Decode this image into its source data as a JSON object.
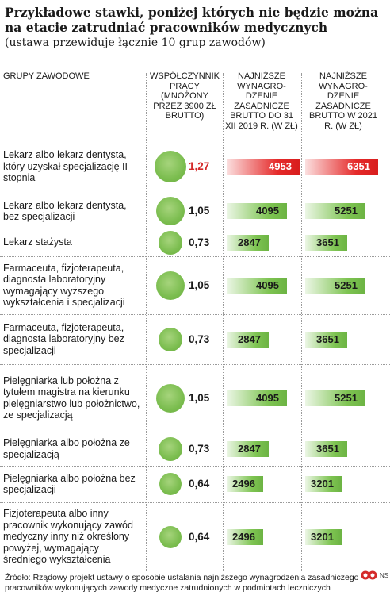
{
  "title": "Przykładowe stawki, poniżej których nie będzie można na etacie zatrudniać pracowników medycznych",
  "subtitle": "(ustawa przewiduje łącznie 10 grup zawodów)",
  "headers": {
    "groups": "GRUPY ZAWODOWE",
    "coef": "WSPÓŁCZYNNIK PRACY (MNOŻONY PRZEZ 3900 ZŁ BRUTTO)",
    "min2019": "NAJNIŻSZE WYNAGRO- DZENIE ZASADNICZE BRUTTO DO 31 XII 2019 R. (W ZŁ)",
    "min2021": "NAJNIŻSZE WYNAGRO- DZENIE ZASADNICZE BRUTTO W 2021 R. (W ZŁ)"
  },
  "colors": {
    "green": "#7ec452",
    "red": "#e52a2a",
    "coef_highlight": "#d42a2a"
  },
  "chart_data": {
    "type": "table",
    "title": "Przykładowe stawki, poniżej których nie będzie można na etacie zatrudniać pracowników medycznych",
    "columns": [
      "GRUPY ZAWODOWE",
      "WSPÓŁCZYNNIK PRACY",
      "NAJNIŻSZE WYNAGRODZENIE 2019",
      "NAJNIŻSZE WYNAGRODZENIE 2021"
    ],
    "rows": [
      {
        "group": "Lekarz albo lekarz dentysta, który uzyskał specjalizację II stopnia",
        "coef": 1.27,
        "coef_label": "1,27",
        "v2019": 4953,
        "v2021": 6351,
        "highlight": true
      },
      {
        "group": "Lekarz albo lekarz dentysta, bez specjalizacji",
        "coef": 1.05,
        "coef_label": "1,05",
        "v2019": 4095,
        "v2021": 5251,
        "highlight": false
      },
      {
        "group": "Lekarz stażysta",
        "coef": 0.73,
        "coef_label": "0,73",
        "v2019": 2847,
        "v2021": 3651,
        "highlight": false
      },
      {
        "group": "Farmaceuta, fizjoterapeuta, diagnosta laboratoryjny wymagający wyższego wykształcenia i specjalizacji",
        "coef": 1.05,
        "coef_label": "1,05",
        "v2019": 4095,
        "v2021": 5251,
        "highlight": false
      },
      {
        "group": "Farmaceuta, fizjoterapeuta, diagnosta laboratoryjny bez specjalizacji",
        "coef": 0.73,
        "coef_label": "0,73",
        "v2019": 2847,
        "v2021": 3651,
        "highlight": false
      },
      {
        "group": "Pielęgniarka lub położna z tytułem magistra na kierunku pielęgniarstwo lub położnictwo, ze specjalizacją",
        "coef": 1.05,
        "coef_label": "1,05",
        "v2019": 4095,
        "v2021": 5251,
        "highlight": false
      },
      {
        "group": "Pielęgniarka albo położna ze specjalizacją",
        "coef": 0.73,
        "coef_label": "0,73",
        "v2019": 2847,
        "v2021": 3651,
        "highlight": false
      },
      {
        "group": "Pielęgniarka albo położna bez specjalizacji",
        "coef": 0.64,
        "coef_label": "0,64",
        "v2019": 2496,
        "v2021": 3201,
        "highlight": false
      },
      {
        "group": "Fizjoterapeuta albo inny pracownik wykonujący zawód medyczny inny niż określony powyżej, wymagający średniego wykształcenia",
        "coef": 0.64,
        "coef_label": "0,64",
        "v2019": 2496,
        "v2021": 3201,
        "highlight": false
      }
    ]
  },
  "source": "Źródło: Rządowy projekt ustawy o sposobie ustalania najniższego wynagrodzenia zasadniczego pracowników wykonujących zawody medyczne zatrudnionych w podmiotach leczniczych",
  "ns_label": "NS"
}
